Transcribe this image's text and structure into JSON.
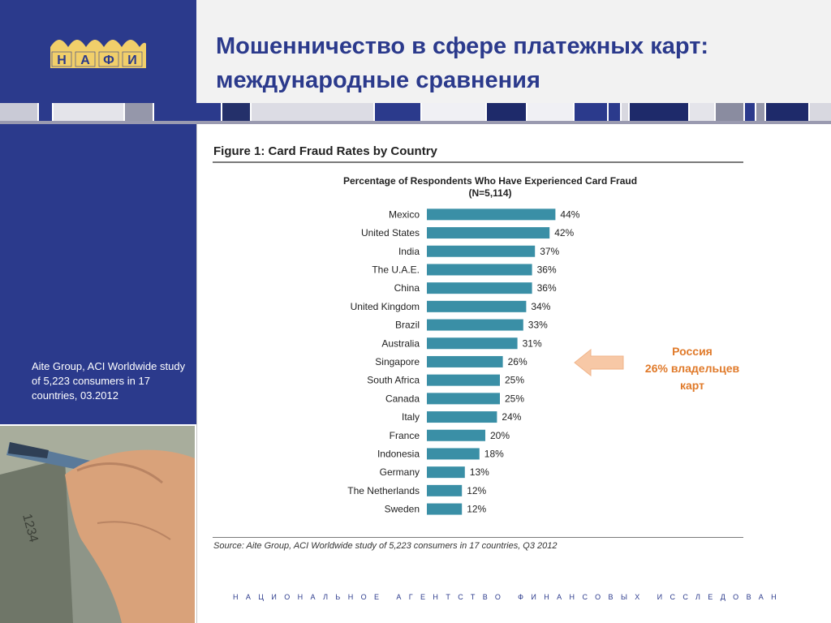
{
  "logo": {
    "text": "НАФИ",
    "letters": [
      "Н",
      "А",
      "Ф",
      "И"
    ]
  },
  "slide": {
    "title_line1": "Мошенничество в сфере платежных карт:",
    "title_line2": "международные сравнения"
  },
  "source_note": "Aite Group, ACI Worldwide study of 5,223 consumers in 17 countries, 03.2012",
  "figure": {
    "title": "Figure 1: Card Fraud Rates by Country",
    "source": "Source: Aite Group, ACI Worldwide study of 5,223 consumers in 17 countries, Q3 2012"
  },
  "callout": {
    "line1": "Россия",
    "line2": "26% владельцев",
    "line3": "карт",
    "color": "#e07a2a"
  },
  "footer": "НАЦИОНАЛЬНОЕ АГЕНТСТВО ФИНАНСОВЫХ ИССЛЕДОВАНИЙ",
  "colors": {
    "brand": "#2b3a8c",
    "bar": "#3a8fa6",
    "callout": "#e07a2a"
  },
  "chart_data": {
    "type": "bar",
    "orientation": "horizontal",
    "title": "Percentage  of Respondents Who Have Experienced Card Fraud",
    "subtitle": "(N=5,114)",
    "categories": [
      "Mexico",
      "United States",
      "India",
      "The U.A.E.",
      "China",
      "United Kingdom",
      "Brazil",
      "Australia",
      "Singapore",
      "South Africa",
      "Canada",
      "Italy",
      "France",
      "Indonesia",
      "Germany",
      "The Netherlands",
      "Sweden"
    ],
    "values": [
      44,
      42,
      37,
      36,
      36,
      34,
      33,
      31,
      26,
      25,
      25,
      24,
      20,
      18,
      13,
      12,
      12
    ],
    "value_suffix": "%",
    "xlim": [
      0,
      100
    ],
    "grid": false,
    "legend": "none"
  }
}
